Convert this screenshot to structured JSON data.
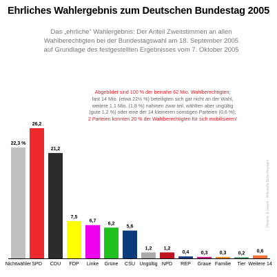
{
  "title": "Ehrliches Wahlergebnis zum Deutschen Bundestag 2005",
  "subtitle": [
    "Das „ehrliche“ Wahlergebnis: Der Anteil Zweitstimmen an allen",
    "Wahlberechtigten bei der Bundestagswahl am 18. September 2005",
    "auf Grundlage des festgestellten Ergebnisses vom 7. Oktober 2005"
  ],
  "note": {
    "line1": "Abgebildet sind 100 % der beinahe 62 Mio. Wahlberechtigten;",
    "line2": "fast 14 Mio. (etwa 22½ %) beteiligten sich gar nicht an der Wahl,",
    "line3": "weitere 1,1 Mio. (1,8 %) nahmen zwar teil, wählten aber ungültig",
    "line4": "(gute 1,2 %) oder eine der 14 kleineren sonstigen Parteien (0,6 %);",
    "line5": "2 Parteien konnten 20 % der Wahlberechtigten für sich mobilisieren!"
  },
  "credit": "Hoverer & Gwerk - Wikipedia Berechnungen",
  "chart_data": {
    "type": "bar",
    "categories": [
      "Nichtwähler",
      "SPD",
      "CDU",
      "FDP",
      "Linke",
      "Grüne",
      "CSU",
      "Ungültig",
      "NPD",
      "REP",
      "Graue",
      "Familie",
      "Tier",
      "Weitere 14"
    ],
    "values": [
      22.3,
      26.2,
      21.2,
      7.5,
      6.7,
      6.2,
      5.6,
      1.2,
      1.2,
      0.4,
      0.3,
      0.3,
      0.2,
      0.6
    ],
    "value_labels": [
      "22,3 %",
      "26,2",
      "21,2",
      "7,5",
      "6,7",
      "6,2",
      "5,6",
      "1,2",
      "1,2",
      "0,4",
      "0,3",
      "0,3",
      "0,2",
      "0,6"
    ],
    "colors": [
      "#c0c0c0",
      "#ee2a2f",
      "#2b2b2b",
      "#ffff00",
      "#ee00ee",
      "#20c020",
      "#0b3b7a",
      "#aaaaaa",
      "#c0141c",
      "#1a3f8a",
      "#cc1a80",
      "#f08c28",
      "#2d8a4a",
      "#f06e32"
    ],
    "label_colors": [
      "#e8141c",
      "#000000",
      "#000000",
      "#000000",
      "#000000",
      "#000000",
      "#000000",
      "#000000",
      "#000000",
      "#000000",
      "#000000",
      "#000000",
      "#000000",
      "#000000"
    ],
    "ylim": [
      0,
      26.2
    ],
    "grid": false,
    "legend": "none"
  }
}
